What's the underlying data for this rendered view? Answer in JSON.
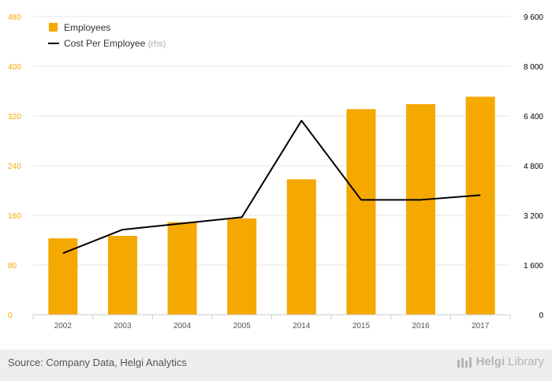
{
  "chart_data": {
    "type": "bar",
    "categories": [
      "2002",
      "2003",
      "2004",
      "2005",
      "2014",
      "2015",
      "2016",
      "2017"
    ],
    "series": [
      {
        "name": "Employees",
        "type": "bar",
        "axis": "left",
        "color": "#f5a800",
        "values": [
          123,
          127,
          149,
          155,
          218,
          331,
          339,
          351
        ]
      },
      {
        "name": "Cost Per Employee",
        "name_suffix": "(rhs)",
        "type": "line",
        "axis": "right",
        "color": "#000000",
        "values": [
          1980,
          2740,
          2940,
          3140,
          6250,
          3700,
          3700,
          3850
        ]
      }
    ],
    "left_axis": {
      "ylim": [
        0,
        480
      ],
      "ticks": [
        "0",
        "80",
        "160",
        "240",
        "320",
        "400",
        "480"
      ],
      "tick_values": [
        0,
        80,
        160,
        240,
        320,
        400,
        480
      ],
      "color": "#f5a800"
    },
    "right_axis": {
      "ylim": [
        0,
        9600
      ],
      "ticks": [
        "0",
        "1 600",
        "3 200",
        "4 800",
        "6 400",
        "8 000",
        "9 600"
      ],
      "tick_values": [
        0,
        1600,
        3200,
        4800,
        6400,
        8000,
        9600
      ],
      "color": "#000000"
    },
    "grid": true,
    "legend": "top-left"
  },
  "footer": {
    "source": "Source: Company Data, Helgi Analytics",
    "brand_bold": "Helgi",
    "brand_thin": "Library"
  }
}
